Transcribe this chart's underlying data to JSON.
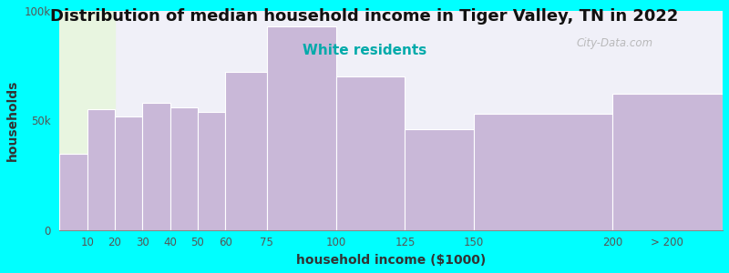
{
  "title": "Distribution of median household income in Tiger Valley, TN in 2022",
  "subtitle": "White residents",
  "xlabel": "household income ($1000)",
  "ylabel": "households",
  "background_color": "#00FFFF",
  "plot_bg_color_left": "#e8f5e0",
  "plot_bg_color_right": "#f0f0f8",
  "bar_color": "#c9b8d8",
  "bar_edge_color": "#ffffff",
  "bar_linewidth": 0.8,
  "values": [
    35000,
    55000,
    52000,
    58000,
    56000,
    54000,
    72000,
    93000,
    70000,
    46000,
    53000,
    62000
  ],
  "left_edges": [
    0,
    10,
    20,
    30,
    40,
    50,
    60,
    75,
    100,
    125,
    150,
    200
  ],
  "right_edges": [
    10,
    20,
    30,
    40,
    50,
    60,
    75,
    100,
    125,
    150,
    200,
    240
  ],
  "xtick_positions": [
    10,
    20,
    30,
    40,
    50,
    60,
    75,
    100,
    125,
    150,
    200,
    220
  ],
  "xtick_labels": [
    "10",
    "20",
    "30",
    "40",
    "50",
    "60",
    "75",
    "100",
    "125",
    "150",
    "200",
    "> 200"
  ],
  "xlim": [
    0,
    240
  ],
  "ylim": [
    0,
    100000
  ],
  "ytick_positions": [
    0,
    50000,
    100000
  ],
  "ytick_labels": [
    "0",
    "50k",
    "100k"
  ],
  "green_span_end": 20,
  "title_fontsize": 13,
  "subtitle_fontsize": 11,
  "subtitle_color": "#00AAAA",
  "axis_label_fontsize": 10,
  "tick_fontsize": 8.5,
  "watermark_text": "City-Data.com",
  "watermark_color": "#b0b0b0"
}
